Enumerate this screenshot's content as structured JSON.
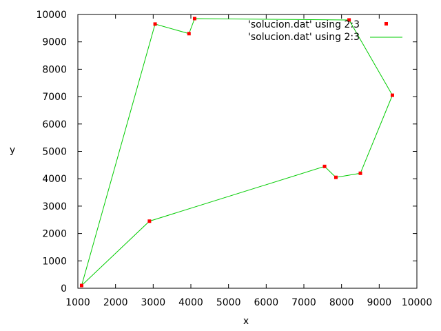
{
  "chart_data": {
    "type": "line",
    "xlabel": "x",
    "ylabel": "y",
    "xlim": [
      1000,
      10000
    ],
    "ylim": [
      0,
      10000
    ],
    "xticks": [
      1000,
      2000,
      3000,
      4000,
      5000,
      6000,
      7000,
      8000,
      9000,
      10000
    ],
    "yticks": [
      0,
      1000,
      2000,
      3000,
      4000,
      5000,
      6000,
      7000,
      8000,
      9000,
      10000
    ],
    "grid": false,
    "legend_position": "top-right",
    "series": [
      {
        "name": "'solucion.dat' using 2:3",
        "style": "points",
        "color": "#ff0000",
        "points": [
          [
            1100,
            100
          ],
          [
            2900,
            2450
          ],
          [
            7550,
            4450
          ],
          [
            7850,
            4050
          ],
          [
            8500,
            4200
          ],
          [
            9350,
            7050
          ],
          [
            8200,
            9800
          ],
          [
            4100,
            9850
          ],
          [
            3950,
            9300
          ],
          [
            3050,
            9650
          ]
        ]
      },
      {
        "name": "'solucion.dat' using 2:3",
        "style": "lines",
        "color": "#00cc00",
        "points": [
          [
            1100,
            100
          ],
          [
            2900,
            2450
          ],
          [
            7550,
            4450
          ],
          [
            7850,
            4050
          ],
          [
            8500,
            4200
          ],
          [
            9350,
            7050
          ],
          [
            8200,
            9800
          ],
          [
            4100,
            9850
          ],
          [
            3950,
            9300
          ],
          [
            3050,
            9650
          ],
          [
            1100,
            100
          ]
        ]
      }
    ]
  }
}
